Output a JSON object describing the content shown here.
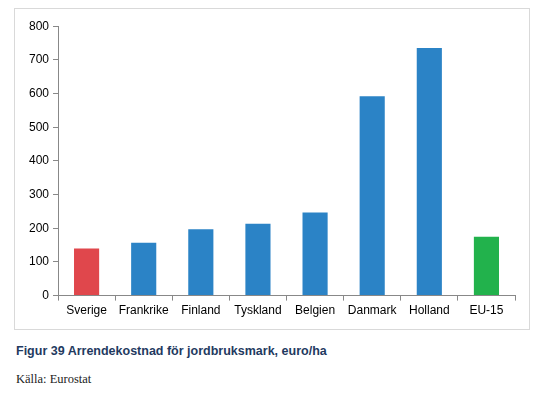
{
  "chart_data": {
    "type": "bar",
    "title": "Figur 39 Arrendekostnad för jordbruksmark, euro/ha",
    "source": "Källa: Eurostat",
    "categories": [
      "Sverige",
      "Frankrike",
      "Finland",
      "Tyskland",
      "Belgien",
      "Danmark",
      "Holland",
      "EU-15"
    ],
    "values": [
      140,
      157,
      197,
      213,
      247,
      592,
      735,
      175
    ],
    "colors": [
      "#e0474c",
      "#2b83c6",
      "#2b83c6",
      "#2b83c6",
      "#2b83c6",
      "#2b83c6",
      "#2b83c6",
      "#22b24c"
    ],
    "ylim": [
      0,
      800
    ],
    "yticks": [
      0,
      100,
      200,
      300,
      400,
      500,
      600,
      700,
      800
    ],
    "grid": false
  }
}
